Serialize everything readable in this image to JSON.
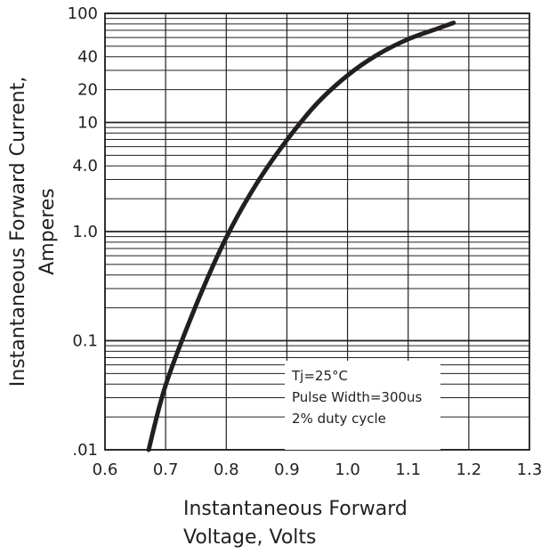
{
  "chart_data": {
    "type": "line",
    "xlabel": [
      "Instantaneous Forward",
      "Voltage, Volts"
    ],
    "ylabel": [
      "Instantaneous Forward Current,",
      "Amperes"
    ],
    "xlim": [
      0.6,
      1.3
    ],
    "ylim": [
      0.01,
      100
    ],
    "yscale": "log",
    "x_ticks": [
      "0.6",
      "0.7",
      "0.8",
      "0.9",
      "1.0",
      "1.1",
      "1.2",
      "1.3"
    ],
    "y_ticks": [
      {
        "value": 100,
        "label": "100"
      },
      {
        "value": 40,
        "label": "40"
      },
      {
        "value": 20,
        "label": "20"
      },
      {
        "value": 10,
        "label": "10"
      },
      {
        "value": 4,
        "label": "4.0"
      },
      {
        "value": 1,
        "label": "1.0"
      },
      {
        "value": 0.1,
        "label": "0.1"
      },
      {
        "value": 0.01,
        "label": ".01"
      }
    ],
    "grid": true,
    "annotation_lines": [
      "Tj=25°C",
      "Pulse Width=300us",
      "2% duty cycle"
    ],
    "series": [
      {
        "x": [
          0.672,
          0.7,
          0.75,
          0.8,
          0.85,
          0.9,
          0.95,
          1.0,
          1.05,
          1.1,
          1.15,
          1.175
        ],
        "y": [
          0.01,
          0.039,
          0.21,
          0.88,
          2.75,
          6.9,
          15.0,
          27.0,
          42.0,
          58.0,
          73.0,
          82.0
        ]
      }
    ]
  }
}
